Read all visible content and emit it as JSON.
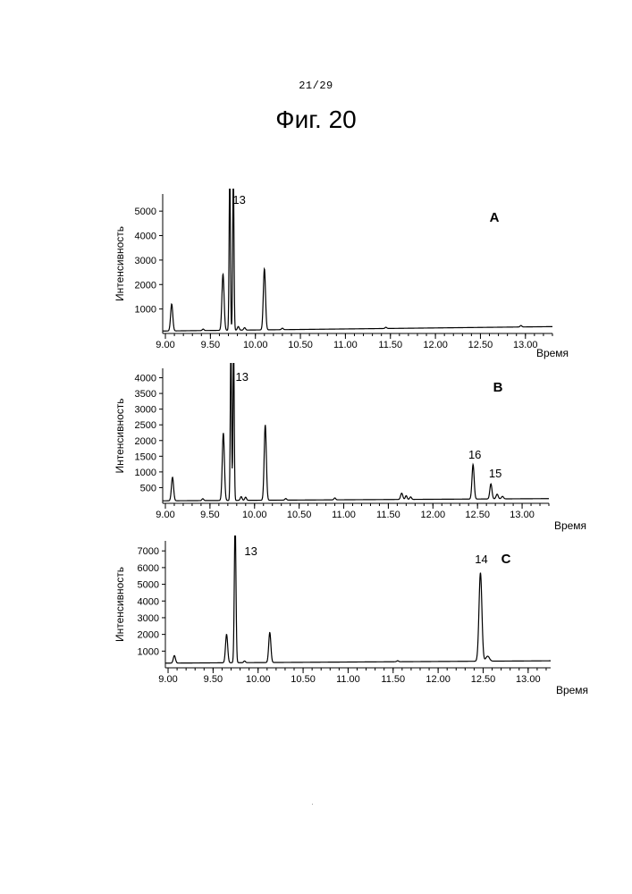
{
  "page": {
    "page_number": "21/29",
    "figure_title": "Фиг. 20"
  },
  "chart_data": [
    {
      "type": "line",
      "panel_letter": "A",
      "xlabel": "Время",
      "ylabel": "Интенсивность",
      "x_ticks": [
        9.0,
        9.5,
        10.0,
        10.5,
        11.0,
        11.5,
        12.0,
        12.5,
        13.0
      ],
      "x_tick_labels": [
        "9.00",
        "9.50",
        "10.00",
        "10.50",
        "11.00",
        "11.50",
        "12.00",
        "12.50",
        "13.00"
      ],
      "y_ticks": [
        1000,
        2000,
        3000,
        4000,
        5000
      ],
      "y_tick_labels": [
        "1000",
        "2000",
        "3000",
        "4000",
        "5000"
      ],
      "xlim": [
        8.97,
        13.3
      ],
      "ylim": [
        0,
        5700
      ],
      "baseline": [
        [
          8.97,
          100
        ],
        [
          13.3,
          280
        ]
      ],
      "peaks": [
        {
          "x": 9.07,
          "height": 1100,
          "width": 0.012
        },
        {
          "x": 9.42,
          "height": 60,
          "width": 0.01
        },
        {
          "x": 9.64,
          "height": 2300,
          "width": 0.012
        },
        {
          "x": 9.715,
          "height": 6500,
          "width": 0.007
        },
        {
          "x": 9.755,
          "height": 6500,
          "width": 0.007
        },
        {
          "x": 9.81,
          "height": 150,
          "width": 0.01
        },
        {
          "x": 9.88,
          "height": 100,
          "width": 0.01
        },
        {
          "x": 10.1,
          "height": 2500,
          "width": 0.012
        },
        {
          "x": 10.3,
          "height": 60,
          "width": 0.01
        },
        {
          "x": 11.45,
          "height": 50,
          "width": 0.01
        },
        {
          "x": 12.95,
          "height": 60,
          "width": 0.01
        }
      ],
      "annotations": [
        {
          "text": "13",
          "x": 9.82,
          "y": 5300
        }
      ]
    },
    {
      "type": "line",
      "panel_letter": "B",
      "xlabel": "Время",
      "ylabel": "Интенсивность",
      "x_ticks": [
        9.0,
        9.5,
        10.0,
        10.5,
        11.0,
        11.5,
        12.0,
        12.5,
        13.0
      ],
      "x_tick_labels": [
        "9.00",
        "9.50",
        "10.00",
        "10.50",
        "11.00",
        "11.50",
        "12.00",
        "12.50",
        "13.00"
      ],
      "y_ticks": [
        500,
        1000,
        1500,
        2000,
        2500,
        3000,
        3500,
        4000
      ],
      "y_tick_labels": [
        "500",
        "1000",
        "1500",
        "2000",
        "2500",
        "3000",
        "3500",
        "4000"
      ],
      "xlim": [
        8.97,
        13.3
      ],
      "ylim": [
        0,
        4300
      ],
      "baseline": [
        [
          8.97,
          80
        ],
        [
          13.3,
          150
        ]
      ],
      "peaks": [
        {
          "x": 9.08,
          "height": 750,
          "width": 0.012
        },
        {
          "x": 9.42,
          "height": 60,
          "width": 0.01
        },
        {
          "x": 9.65,
          "height": 2150,
          "width": 0.012
        },
        {
          "x": 9.735,
          "height": 5000,
          "width": 0.007
        },
        {
          "x": 9.765,
          "height": 5000,
          "width": 0.007
        },
        {
          "x": 9.85,
          "height": 120,
          "width": 0.01
        },
        {
          "x": 9.9,
          "height": 100,
          "width": 0.01
        },
        {
          "x": 10.12,
          "height": 2400,
          "width": 0.012
        },
        {
          "x": 10.35,
          "height": 50,
          "width": 0.01
        },
        {
          "x": 10.9,
          "height": 60,
          "width": 0.01
        },
        {
          "x": 11.65,
          "height": 200,
          "width": 0.012
        },
        {
          "x": 11.7,
          "height": 120,
          "width": 0.01
        },
        {
          "x": 11.75,
          "height": 80,
          "width": 0.01
        },
        {
          "x": 12.45,
          "height": 1100,
          "width": 0.012
        },
        {
          "x": 12.65,
          "height": 480,
          "width": 0.012
        },
        {
          "x": 12.72,
          "height": 150,
          "width": 0.012
        },
        {
          "x": 12.78,
          "height": 80,
          "width": 0.012
        }
      ],
      "annotations": [
        {
          "text": "13",
          "x": 9.86,
          "y": 3900
        },
        {
          "text": "16",
          "x": 12.47,
          "y": 1420
        },
        {
          "text": "15",
          "x": 12.7,
          "y": 830
        }
      ]
    },
    {
      "type": "line",
      "panel_letter": "C",
      "xlabel": "Время",
      "ylabel": "Интенсивность",
      "x_ticks": [
        9.0,
        9.5,
        10.0,
        10.5,
        11.0,
        11.5,
        12.0,
        12.5,
        13.0
      ],
      "x_tick_labels": [
        "9.00",
        "9.50",
        "10.00",
        "10.50",
        "11.00",
        "11.50",
        "12.00",
        "12.50",
        "13.00"
      ],
      "y_ticks": [
        1000,
        2000,
        3000,
        4000,
        5000,
        6000,
        7000
      ],
      "y_tick_labels": [
        "1000",
        "2000",
        "3000",
        "4000",
        "5000",
        "6000",
        "7000"
      ],
      "xlim": [
        8.97,
        13.25
      ],
      "ylim": [
        0,
        7600
      ],
      "baseline": [
        [
          8.97,
          280
        ],
        [
          13.25,
          420
        ]
      ],
      "peaks": [
        {
          "x": 9.07,
          "height": 450,
          "width": 0.012
        },
        {
          "x": 9.65,
          "height": 1700,
          "width": 0.012
        },
        {
          "x": 9.745,
          "height": 8500,
          "width": 0.009
        },
        {
          "x": 9.85,
          "height": 100,
          "width": 0.01
        },
        {
          "x": 10.13,
          "height": 1800,
          "width": 0.012
        },
        {
          "x": 11.55,
          "height": 60,
          "width": 0.01
        },
        {
          "x": 12.47,
          "height": 5300,
          "width": 0.016
        },
        {
          "x": 12.55,
          "height": 300,
          "width": 0.02
        }
      ],
      "annotations": [
        {
          "text": "13",
          "x": 9.92,
          "y": 6750
        },
        {
          "text": "14",
          "x": 12.48,
          "y": 6250
        }
      ]
    }
  ]
}
